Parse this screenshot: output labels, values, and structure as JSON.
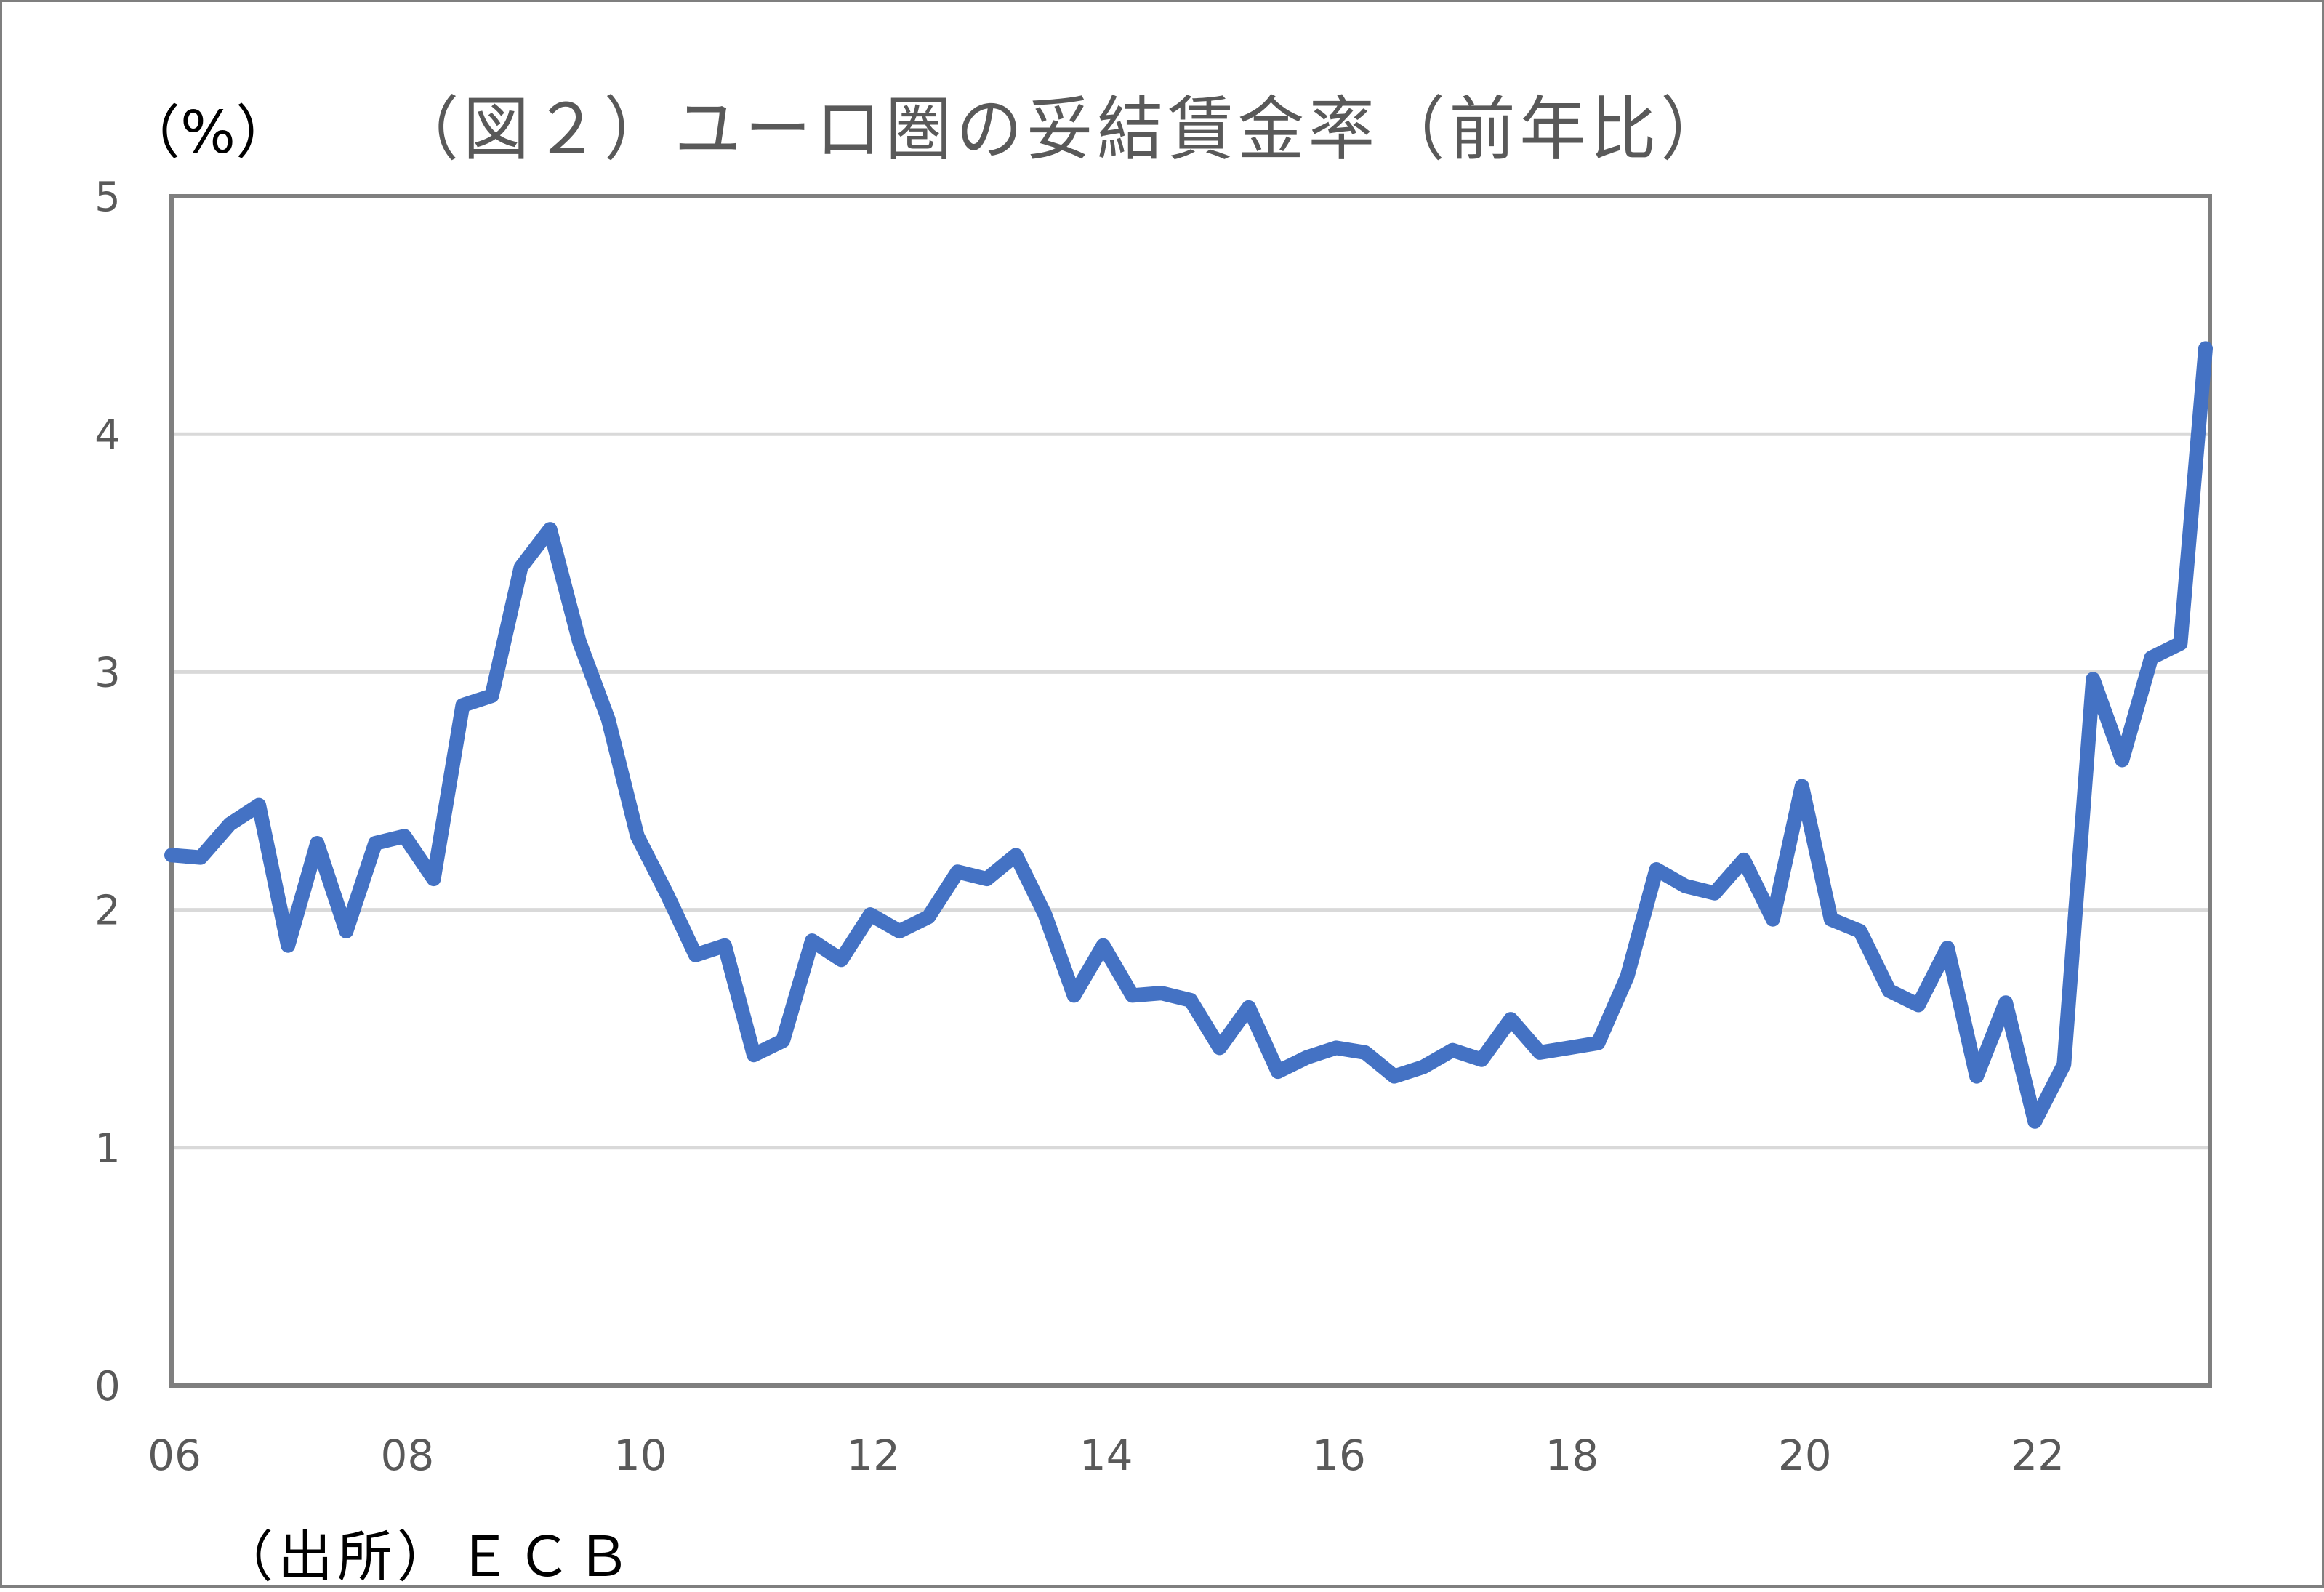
{
  "chart_data": {
    "type": "line",
    "title": "（図２）ユーロ圏の妥結賃金率（前年比）",
    "ylabel": "（%）",
    "xlabel": "",
    "source_note": "（出所）ＥＣＢ",
    "ylim": [
      0,
      5
    ],
    "yticks": [
      "0",
      "1",
      "2",
      "3",
      "4",
      "5"
    ],
    "xticks": [
      "06",
      "08",
      "10",
      "12",
      "14",
      "16",
      "18",
      "20",
      "22"
    ],
    "grid": true,
    "legend": null,
    "frequency": "quarterly",
    "x_start": "2006Q1",
    "series": [
      {
        "name": "妥結賃金率（前年比）",
        "color": "#4472c4",
        "values": [
          2.23,
          2.22,
          2.36,
          2.44,
          1.85,
          2.28,
          1.91,
          2.28,
          2.31,
          2.13,
          2.86,
          2.9,
          3.44,
          3.6,
          3.13,
          2.8,
          2.31,
          2.07,
          1.81,
          1.85,
          1.39,
          1.45,
          1.87,
          1.79,
          1.98,
          1.91,
          1.97,
          2.16,
          2.13,
          2.23,
          1.98,
          1.64,
          1.85,
          1.64,
          1.65,
          1.62,
          1.42,
          1.59,
          1.32,
          1.38,
          1.42,
          1.4,
          1.3,
          1.34,
          1.41,
          1.37,
          1.54,
          1.4,
          1.42,
          1.44,
          1.72,
          2.17,
          2.1,
          2.07,
          2.21,
          1.96,
          2.52,
          1.96,
          1.91,
          1.66,
          1.6,
          1.84,
          1.3,
          1.61,
          1.11,
          1.35,
          2.97,
          2.63,
          3.06,
          3.12,
          4.36
        ]
      }
    ]
  },
  "header": {
    "title": "（図２）ユーロ圏の妥結賃金率（前年比）",
    "unit": "（%）"
  },
  "footer": {
    "source": "（出所）ＥＣＢ"
  },
  "colors": {
    "line": "#4472c4",
    "grid": "#d9d9d9",
    "axis": "#7f7f7f",
    "text": "#595959"
  }
}
